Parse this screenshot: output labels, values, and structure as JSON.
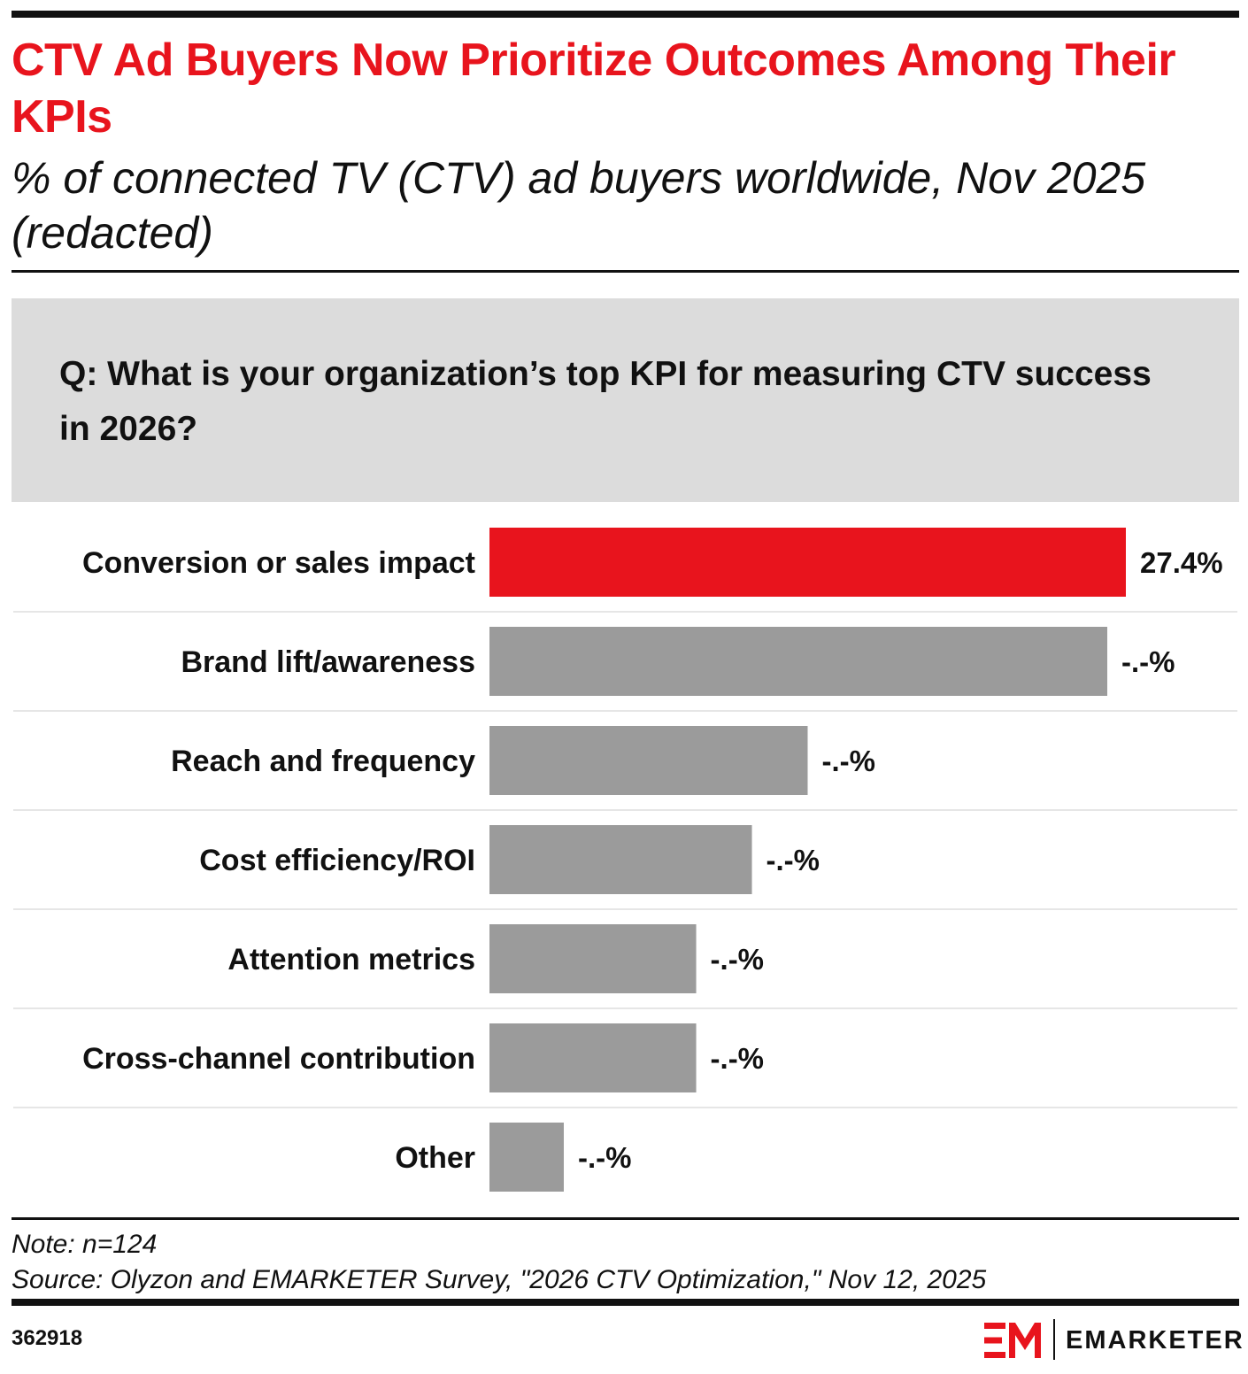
{
  "header": {
    "title": "CTV Ad Buyers Now Prioritize Outcomes Among Their KPIs",
    "subtitle": "% of connected TV (CTV) ad buyers worldwide, Nov 2025 (redacted)"
  },
  "question": "Q: What is your organization’s top KPI for measuring CTV success in 2026?",
  "chart_data": {
    "type": "bar",
    "orientation": "horizontal",
    "categories": [
      "Conversion or sales impact",
      "Brand lift/awareness",
      "Reach and frequency",
      "Cost efficiency/ROI",
      "Attention metrics",
      "Cross-channel contribution",
      "Other"
    ],
    "values": [
      27.4,
      26.6,
      13.7,
      11.3,
      8.9,
      8.9,
      3.2
    ],
    "value_labels": [
      "27.4%",
      "-.-%",
      "-.-%",
      "-.-%",
      "-.-%",
      "-.-%",
      "-.-%"
    ],
    "highlight_index": 0,
    "colors": {
      "highlight": "#e8141d",
      "default": "#9b9b9b",
      "separator": "#e6e6e6"
    },
    "xlim": [
      0,
      27.4
    ],
    "title": "CTV Ad Buyers Now Prioritize Outcomes Among Their KPIs",
    "xlabel": "",
    "ylabel": ""
  },
  "footer": {
    "note": "Note: n=124",
    "source": "Source: Olyzon and EMARKETER Survey, \"2026 CTV Optimization,\" Nov 12, 2025",
    "chart_id": "362918",
    "brand": "EMARKETER",
    "brand_color": "#e8141d"
  }
}
